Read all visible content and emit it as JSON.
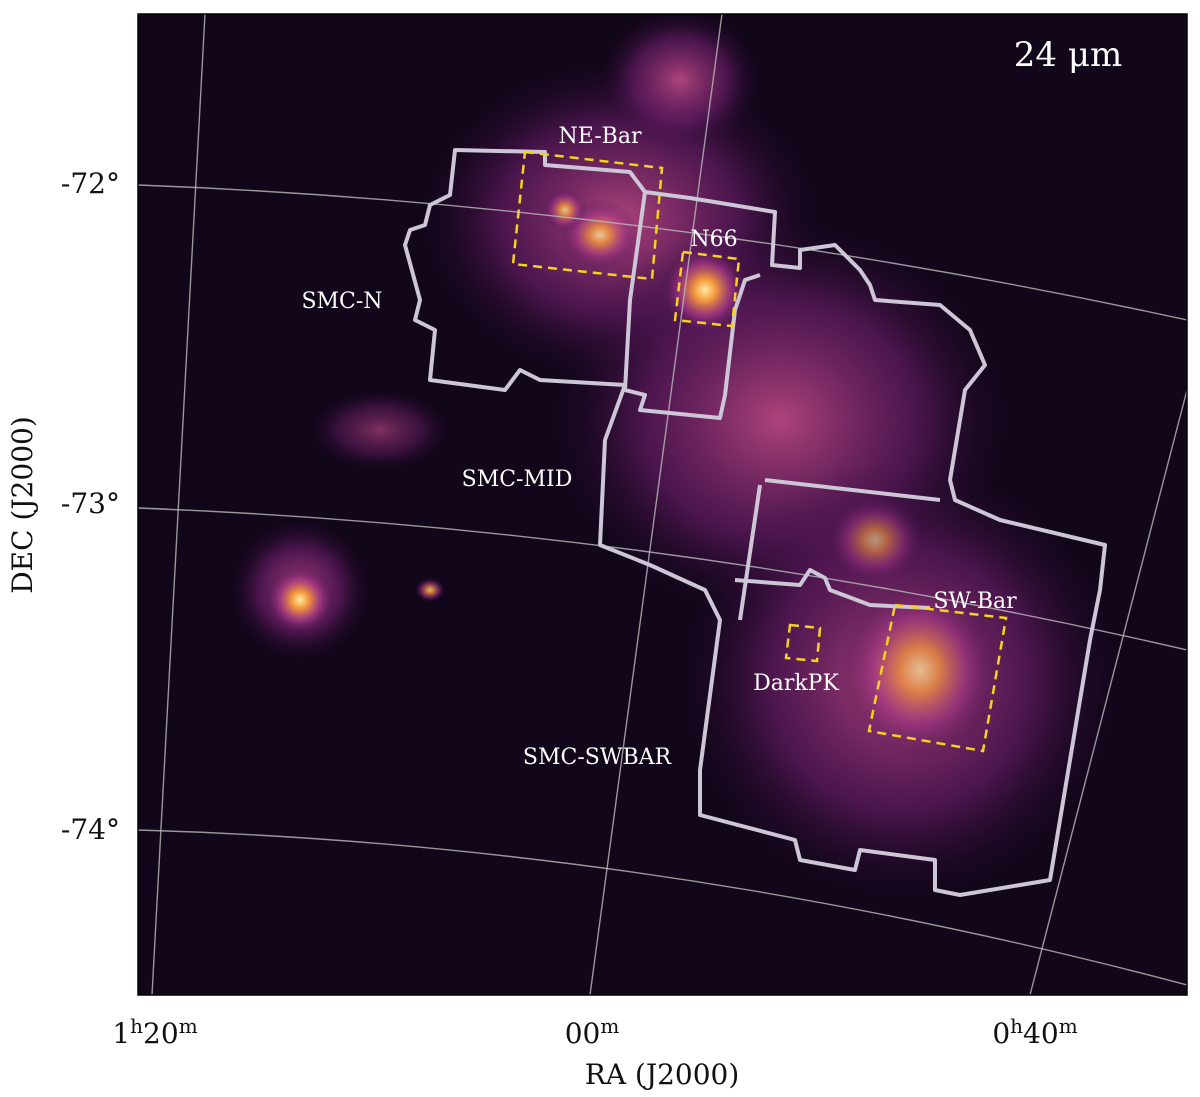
{
  "panel_label": "24 μm",
  "regions": [
    {
      "label": "NE-Bar"
    },
    {
      "label": "N66"
    },
    {
      "label": "SW-Bar"
    },
    {
      "label": "DarkPK"
    }
  ],
  "fields": [
    {
      "label": "SMC-N"
    },
    {
      "label": "SMC-MID"
    },
    {
      "label": "SMC-SWBAR"
    }
  ],
  "axes": {
    "x_label": "RA (J2000)",
    "y_label": "DEC (J2000)",
    "x_ticks": [
      [
        "1",
        "h",
        "20",
        "m"
      ],
      [
        "00",
        "m"
      ],
      [
        "0",
        "h",
        "40",
        "m"
      ]
    ],
    "y_ticks": [
      "-72°",
      "-73°",
      "-74°"
    ]
  }
}
